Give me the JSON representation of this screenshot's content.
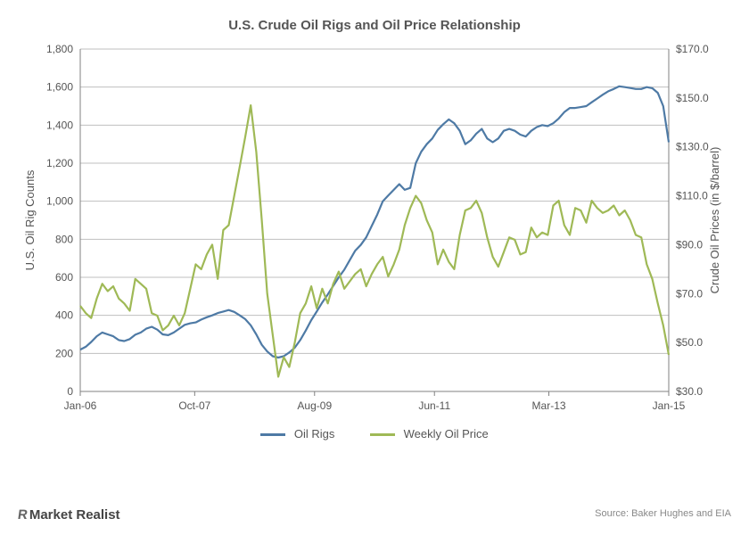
{
  "chart": {
    "type": "line",
    "title": "U.S. Crude Oil Rigs and Oil Price Relationship",
    "title_fontsize": 15,
    "title_color": "#555555",
    "background_color": "#ffffff",
    "grid_color": "#bfbfbf",
    "axis_color": "#808080",
    "text_color": "#555555",
    "y_left": {
      "label": "U.S. Oil Rig Counts",
      "min": 0,
      "max": 1800,
      "tick_step": 200,
      "ticks": [
        "0",
        "200",
        "400",
        "600",
        "800",
        "1,000",
        "1,200",
        "1,400",
        "1,600",
        "1,800"
      ]
    },
    "y_right": {
      "label": "Crude Oil Prices (in $/barrel)",
      "min": 30,
      "max": 170,
      "ticks": [
        "$30.0",
        "$50.0",
        "$70.0",
        "$90.0",
        "$110.0",
        "$130.0",
        "$150.0",
        "$170.0"
      ]
    },
    "x": {
      "min": 0,
      "max": 108,
      "tick_positions": [
        0,
        21,
        43,
        65,
        86,
        108
      ],
      "tick_labels": [
        "Jan-06",
        "Oct-07",
        "Aug-09",
        "Jun-11",
        "Mar-13",
        "Jan-15"
      ]
    },
    "series": [
      {
        "name": "Oil Rigs",
        "axis": "left",
        "color": "#4e7aa5",
        "line_width": 2.2,
        "data": [
          220,
          235,
          260,
          290,
          310,
          300,
          290,
          270,
          265,
          275,
          298,
          310,
          330,
          340,
          325,
          300,
          296,
          310,
          330,
          350,
          358,
          363,
          378,
          390,
          400,
          412,
          420,
          428,
          418,
          400,
          380,
          348,
          300,
          245,
          210,
          185,
          178,
          185,
          205,
          230,
          270,
          320,
          375,
          420,
          468,
          510,
          555,
          600,
          640,
          690,
          740,
          770,
          810,
          870,
          930,
          1000,
          1030,
          1060,
          1090,
          1060,
          1070,
          1200,
          1260,
          1300,
          1330,
          1375,
          1405,
          1430,
          1410,
          1370,
          1300,
          1320,
          1355,
          1380,
          1330,
          1310,
          1330,
          1370,
          1380,
          1370,
          1350,
          1340,
          1370,
          1390,
          1400,
          1395,
          1410,
          1435,
          1468,
          1490,
          1490,
          1495,
          1500,
          1520,
          1540,
          1560,
          1578,
          1590,
          1604,
          1600,
          1595,
          1590,
          1590,
          1600,
          1594,
          1570,
          1500,
          1310
        ]
      },
      {
        "name": "Weekly Oil Price",
        "axis": "right",
        "color": "#9fb956",
        "line_width": 2.2,
        "data": [
          65,
          62,
          60,
          68,
          74,
          71,
          73,
          68,
          66,
          63,
          76,
          74,
          72,
          62,
          61,
          55,
          57,
          61,
          57,
          62,
          72,
          82,
          80,
          86,
          90,
          76,
          96,
          98,
          110,
          122,
          134,
          147,
          128,
          100,
          70,
          53,
          36,
          44,
          40,
          50,
          62,
          66,
          73,
          64,
          72,
          66,
          74,
          79,
          72,
          75,
          78,
          80,
          73,
          78,
          82,
          85,
          77,
          82,
          88,
          98,
          105,
          110,
          107,
          100,
          95,
          82,
          88,
          83,
          80,
          94,
          104,
          105,
          108,
          103,
          93,
          85,
          81,
          87,
          93,
          92,
          86,
          87,
          97,
          93,
          95,
          94,
          106,
          108,
          98,
          94,
          105,
          104,
          99,
          108,
          105,
          103,
          104,
          106,
          102,
          104,
          100,
          94,
          93,
          82,
          76,
          66,
          57,
          45
        ]
      }
    ],
    "legend": {
      "items": [
        "Oil Rigs",
        "Weekly Oil Price"
      ]
    }
  },
  "footer": {
    "brand": "Market Realist",
    "source": "Source: Baker Hughes and EIA"
  }
}
